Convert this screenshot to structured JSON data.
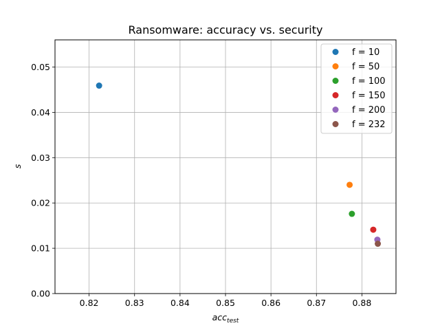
{
  "chart_data": {
    "type": "scatter",
    "title": "Ransomware: accuracy vs. security",
    "xlabel": {
      "base": "acc",
      "subscript": "test"
    },
    "ylabel": "s",
    "xlim": [
      0.8125,
      0.8875
    ],
    "ylim": [
      0.0,
      0.056
    ],
    "xticks": [
      0.82,
      0.83,
      0.84,
      0.85,
      0.86,
      0.87,
      0.88
    ],
    "xtick_labels": [
      "0.82",
      "0.83",
      "0.84",
      "0.85",
      "0.86",
      "0.87",
      "0.88"
    ],
    "yticks": [
      0.0,
      0.01,
      0.02,
      0.03,
      0.04,
      0.05
    ],
    "ytick_labels": [
      "0.00",
      "0.01",
      "0.02",
      "0.03",
      "0.04",
      "0.05"
    ],
    "grid": true,
    "legend_position": "top-right",
    "series": [
      {
        "name": "f = 10",
        "color": "#1f77b4",
        "points": [
          [
            0.8222,
            0.0459
          ]
        ]
      },
      {
        "name": "f = 50",
        "color": "#ff7f0e",
        "points": [
          [
            0.8773,
            0.024
          ]
        ]
      },
      {
        "name": "f = 100",
        "color": "#2ca02c",
        "points": [
          [
            0.8778,
            0.0176
          ]
        ]
      },
      {
        "name": "f = 150",
        "color": "#d62728",
        "points": [
          [
            0.8825,
            0.0141
          ]
        ]
      },
      {
        "name": "f = 200",
        "color": "#9467bd",
        "points": [
          [
            0.8834,
            0.0119
          ]
        ]
      },
      {
        "name": "f = 232",
        "color": "#8c564b",
        "points": [
          [
            0.8835,
            0.011
          ]
        ]
      }
    ]
  }
}
